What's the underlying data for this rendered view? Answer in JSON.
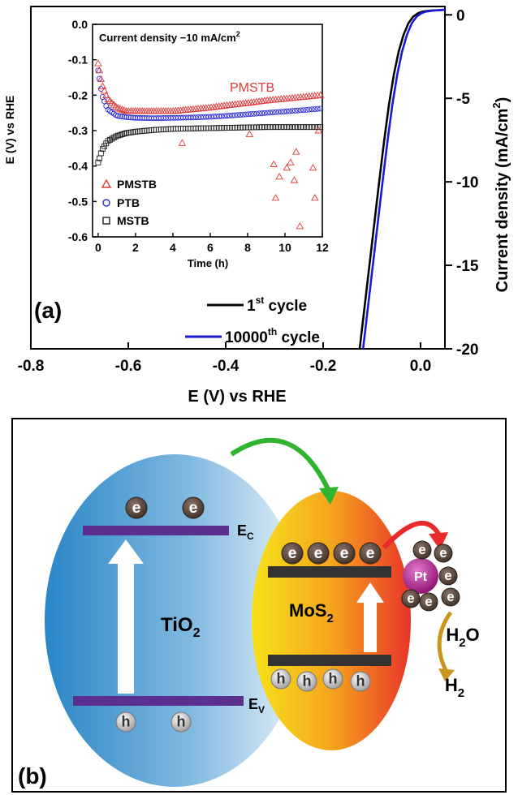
{
  "chart_data": [
    {
      "panel": "(a)",
      "type": "line",
      "xlabel": "E (V) vs RHE",
      "ylabel_right": "Current density (mA/cm",
      "ylabel_right_sup": "2",
      "ylabel_right_close": ")",
      "xlim": [
        -0.8,
        0.05
      ],
      "ylim": [
        -20,
        0.5
      ],
      "xticks": [
        "-0.8",
        "-0.6",
        "-0.4",
        "-0.2",
        "0.0"
      ],
      "xtick_values": [
        -0.8,
        -0.6,
        -0.4,
        -0.2,
        0.0
      ],
      "yticks": [
        "0",
        "-5",
        "-10",
        "-15",
        "-20"
      ],
      "ytick_values": [
        0,
        -5,
        -10,
        -15,
        -20
      ],
      "series": [
        {
          "name_main": "1",
          "name_sup": "st",
          "name_rest": " cycle",
          "color": "#000000",
          "x": [
            -0.125,
            -0.115,
            -0.105,
            -0.095,
            -0.085,
            -0.075,
            -0.065,
            -0.055,
            -0.045,
            -0.035,
            -0.025,
            -0.015,
            -0.005,
            0.005,
            0.02,
            0.04,
            0.05
          ],
          "y": [
            -20,
            -17.5,
            -15,
            -12.5,
            -10,
            -7.6,
            -5.4,
            -3.6,
            -2.2,
            -1.2,
            -0.5,
            -0.1,
            0.1,
            0.2,
            0.25,
            0.28,
            0.3
          ]
        },
        {
          "name_main": "10000",
          "name_sup": "th",
          "name_rest": " cycle",
          "color": "#1a1ad6",
          "x": [
            -0.118,
            -0.108,
            -0.098,
            -0.088,
            -0.078,
            -0.068,
            -0.058,
            -0.048,
            -0.038,
            -0.028,
            -0.018,
            -0.008,
            0.002,
            0.012,
            0.025,
            0.04,
            0.05
          ],
          "y": [
            -20,
            -17.5,
            -15,
            -12.5,
            -10,
            -7.6,
            -5.4,
            -3.6,
            -2.2,
            -1.2,
            -0.5,
            -0.1,
            0.1,
            0.2,
            0.25,
            0.28,
            0.3
          ]
        }
      ]
    },
    {
      "panel": "inset",
      "type": "scatter",
      "title": "Current density −10 mA/cm",
      "title_sup": "2",
      "xlabel": "Time (h)",
      "ylabel": "E (V) vs RHE",
      "xlim": [
        -0.3,
        12
      ],
      "ylim": [
        -0.6,
        0.0
      ],
      "xticks": [
        "0",
        "2",
        "4",
        "6",
        "8",
        "10",
        "12"
      ],
      "xtick_values": [
        0,
        2,
        4,
        6,
        8,
        10,
        12
      ],
      "yticks": [
        "0.0",
        "-0.1",
        "-0.2",
        "-0.3",
        "-0.4",
        "-0.5",
        "-0.6"
      ],
      "ytick_values": [
        0.0,
        -0.1,
        -0.2,
        -0.3,
        -0.4,
        -0.5,
        -0.6
      ],
      "annotation": "PMSTB",
      "series": [
        {
          "name": "PMSTB",
          "marker": "triangle",
          "color": "#e03a3a",
          "x": [
            0.0,
            0.2,
            0.5,
            1.0,
            1.5,
            2,
            3,
            4,
            5,
            6,
            7,
            8,
            9,
            10,
            11,
            11.9
          ],
          "y": [
            -0.11,
            -0.17,
            -0.21,
            -0.235,
            -0.245,
            -0.245,
            -0.245,
            -0.245,
            -0.24,
            -0.235,
            -0.228,
            -0.222,
            -0.215,
            -0.21,
            -0.205,
            -0.2
          ],
          "outliers_x": [
            4.5,
            8.1,
            9.4,
            9.5,
            9.7,
            10.1,
            10.3,
            10.5,
            10.8,
            11.5,
            11.6,
            11.8,
            10.6
          ],
          "outliers_y": [
            -0.335,
            -0.31,
            -0.395,
            -0.49,
            -0.43,
            -0.405,
            -0.39,
            -0.44,
            -0.57,
            -0.405,
            -0.49,
            -0.3,
            -0.36
          ]
        },
        {
          "name": "PTB",
          "marker": "circle",
          "color": "#2a2ad8",
          "x": [
            0.0,
            0.2,
            0.5,
            1.0,
            1.5,
            2,
            3,
            4,
            5,
            6,
            7,
            8,
            9,
            10,
            11,
            11.9
          ],
          "y": [
            -0.13,
            -0.2,
            -0.24,
            -0.258,
            -0.262,
            -0.264,
            -0.265,
            -0.264,
            -0.263,
            -0.261,
            -0.258,
            -0.254,
            -0.25,
            -0.246,
            -0.242,
            -0.238
          ]
        },
        {
          "name": "MSTB",
          "marker": "square",
          "color": "#222222",
          "x": [
            0.0,
            0.2,
            0.5,
            1.0,
            1.5,
            2,
            3,
            4,
            5,
            6,
            7,
            8,
            9,
            10,
            11,
            11.9
          ],
          "y": [
            -0.39,
            -0.355,
            -0.33,
            -0.315,
            -0.307,
            -0.303,
            -0.298,
            -0.295,
            -0.294,
            -0.293,
            -0.292,
            -0.291,
            -0.29,
            -0.29,
            -0.29,
            -0.29
          ]
        }
      ]
    }
  ],
  "panel_a_label": "(a)",
  "panel_b": {
    "label": "(b)",
    "tio2": "TiO",
    "tio2_sub": "2",
    "mos2": "MoS",
    "mos2_sub": "2",
    "ec": "E",
    "ec_sub": "C",
    "ev": "E",
    "ev_sub": "V",
    "electron": "e",
    "hole": "h",
    "pt": "Pt",
    "h2o": "H",
    "h2o_sub": "2",
    "h2o_tail": "O",
    "h2": "H",
    "h2_sub": "2"
  }
}
